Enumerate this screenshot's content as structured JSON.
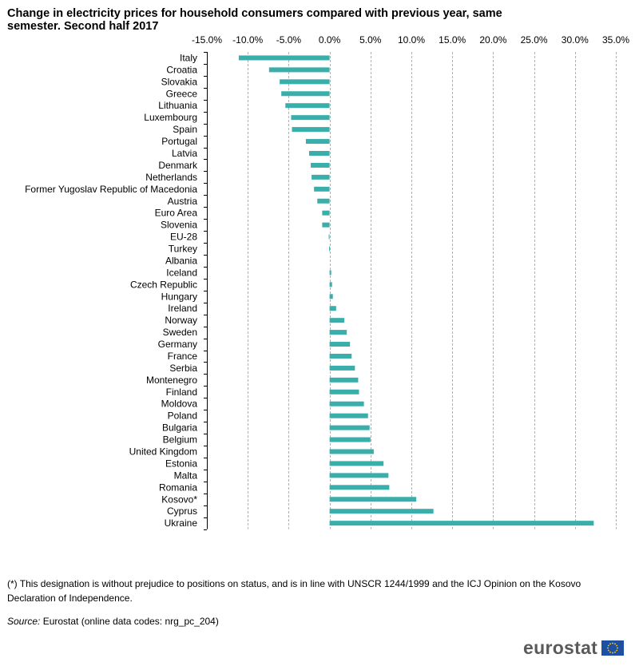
{
  "title": "Change in electricity  prices for household consumers compared with previous year, same semester. Second half 2017",
  "chart_data": {
    "type": "bar",
    "orientation": "horizontal",
    "title": "Change in electricity  prices for household consumers compared with previous year, same semester. Second half 2017",
    "xlim": [
      -15,
      35
    ],
    "x_ticks": [
      -15,
      -10,
      -5,
      0,
      5,
      10,
      15,
      20,
      25,
      30,
      35
    ],
    "x_tick_labels": [
      "-15.0%",
      "-10.0%",
      "-5.0%",
      "0.0%",
      "5.0%",
      "10.0%",
      "15.0%",
      "20.0%",
      "25.0%",
      "30.0%",
      "35.0%"
    ],
    "x_axis_position": "top",
    "grid": "vertical dashed",
    "bar_color": "#3aaeaa",
    "categories": [
      "Italy",
      "Croatia",
      "Slovakia",
      "Greece",
      "Lithuania",
      "Luxembourg",
      "Spain",
      "Portugal",
      "Latvia",
      "Denmark",
      "Netherlands",
      "Former Yugoslav Republic of Macedonia",
      "Austria",
      "Euro Area",
      "Slovenia",
      "EU-28",
      "Turkey",
      "Albania",
      "Iceland",
      "Czech Republic",
      "Hungary",
      "Ireland",
      "Norway",
      "Sweden",
      "Germany",
      "France",
      "Serbia",
      "Montenegro",
      "Finland",
      "Moldova",
      "Poland",
      "Bulgaria",
      "Belgium",
      "United Kingdom",
      "Estonia",
      "Malta",
      "Romania",
      "Kosovo*",
      "Cyprus",
      "Ukraine"
    ],
    "values": [
      -11.1,
      -7.4,
      -6.1,
      -5.9,
      -5.4,
      -4.7,
      -4.6,
      -2.9,
      -2.5,
      -2.3,
      -2.2,
      -1.9,
      -1.5,
      -0.9,
      -0.9,
      -0.1,
      -0.05,
      0.0,
      0.2,
      0.3,
      0.4,
      0.8,
      1.8,
      2.1,
      2.5,
      2.7,
      3.1,
      3.5,
      3.6,
      4.2,
      4.7,
      4.9,
      5.0,
      5.4,
      6.6,
      7.2,
      7.3,
      10.6,
      12.7,
      32.3
    ]
  },
  "footnote": "(*) This designation is without prejudice to positions on status, and is in line with UNSCR 1244/1999 and the ICJ Opinion on the Kosovo Declaration of Independence.",
  "source": {
    "label": "Source:",
    "text": " Eurostat (online data codes: nrg_pc_204)"
  },
  "logo": {
    "word": "eurostat"
  }
}
